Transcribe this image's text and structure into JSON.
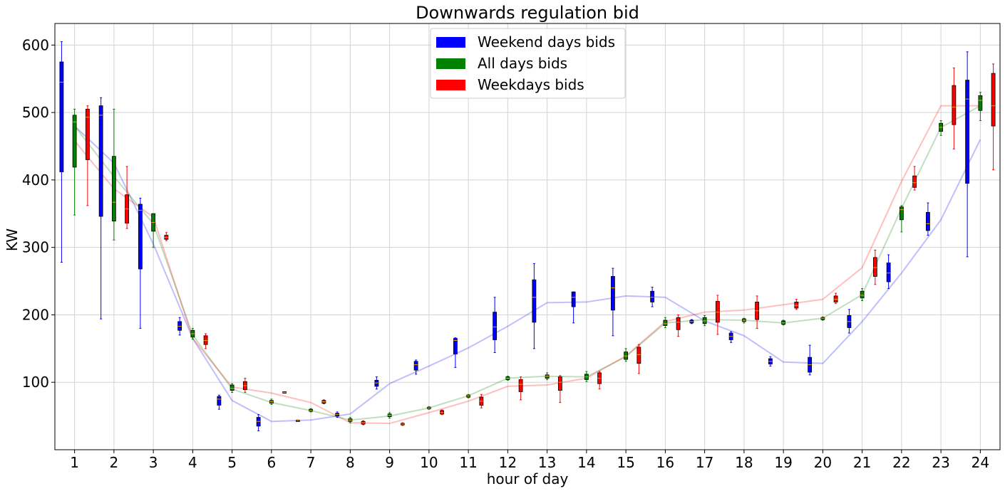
{
  "chart_data": {
    "type": "box",
    "title": "Downwards regulation bid",
    "xlabel": "hour of day",
    "ylabel": "KW",
    "x_ticks": [
      "1",
      "2",
      "3",
      "4",
      "5",
      "6",
      "7",
      "8",
      "9",
      "10",
      "11",
      "12",
      "13",
      "14",
      "15",
      "16",
      "17",
      "18",
      "19",
      "20",
      "21",
      "22",
      "23",
      "24"
    ],
    "y_ticks": [
      100,
      200,
      300,
      400,
      500,
      600
    ],
    "xlim": [
      0.5,
      24.5
    ],
    "ylim": [
      0,
      632
    ],
    "grid": true,
    "legend_position": "upper-center",
    "series": [
      {
        "name": "Weekend days bids",
        "color": "#0000ff",
        "line_values": [
          480,
          425,
          305,
          165,
          73,
          42,
          44,
          53,
          98,
          124,
          151,
          183,
          218,
          219,
          228,
          226,
          191,
          169,
          130,
          128,
          190,
          262,
          341,
          460
        ],
        "boxes": [
          {
            "whisker_low": 278,
            "q1": 412,
            "median": 545,
            "q3": 575,
            "whisker_high": 605
          },
          {
            "whisker_low": 194,
            "q1": 346,
            "median": 496,
            "q3": 510,
            "whisker_high": 522
          },
          {
            "whisker_low": 180,
            "q1": 268,
            "median": 355,
            "q3": 364,
            "whisker_high": 373
          },
          {
            "whisker_low": 170,
            "q1": 177,
            "median": 183,
            "q3": 190,
            "whisker_high": 196
          },
          {
            "whisker_low": 60,
            "q1": 66,
            "median": 75,
            "q3": 79,
            "whisker_high": 81
          },
          {
            "whisker_low": 28,
            "q1": 35,
            "median": 42,
            "q3": 48,
            "whisker_high": 52
          },
          {
            "whisker_low": 44,
            "q1": 44,
            "median": 44,
            "q3": 44,
            "whisker_high": 44
          },
          {
            "whisker_low": 48,
            "q1": 50,
            "median": 52,
            "q3": 54,
            "whisker_high": 56
          },
          {
            "whisker_low": 90,
            "q1": 94,
            "median": 99,
            "q3": 103,
            "whisker_high": 108
          },
          {
            "whisker_low": 112,
            "q1": 118,
            "median": 126,
            "q3": 131,
            "whisker_high": 133
          },
          {
            "whisker_low": 122,
            "q1": 142,
            "median": 162,
            "q3": 165,
            "whisker_high": 166
          },
          {
            "whisker_low": 144,
            "q1": 163,
            "median": 182,
            "q3": 204,
            "whisker_high": 226
          },
          {
            "whisker_low": 150,
            "q1": 189,
            "median": 226,
            "q3": 252,
            "whisker_high": 276
          },
          {
            "whisker_low": 188,
            "q1": 212,
            "median": 226,
            "q3": 234,
            "whisker_high": 234
          },
          {
            "whisker_low": 169,
            "q1": 207,
            "median": 240,
            "q3": 257,
            "whisker_high": 269
          },
          {
            "whisker_low": 212,
            "q1": 219,
            "median": 226,
            "q3": 235,
            "whisker_high": 241
          },
          {
            "whisker_low": 187,
            "q1": 188,
            "median": 190,
            "q3": 192,
            "whisker_high": 193
          },
          {
            "whisker_low": 159,
            "q1": 163,
            "median": 168,
            "q3": 173,
            "whisker_high": 175
          },
          {
            "whisker_low": 124,
            "q1": 127,
            "median": 131,
            "q3": 135,
            "whisker_high": 138
          },
          {
            "whisker_low": 111,
            "q1": 115,
            "median": 126,
            "q3": 137,
            "whisker_high": 155
          },
          {
            "whisker_low": 173,
            "q1": 181,
            "median": 190,
            "q3": 199,
            "whisker_high": 208
          },
          {
            "whisker_low": 239,
            "q1": 249,
            "median": 262,
            "q3": 277,
            "whisker_high": 289
          },
          {
            "whisker_low": 318,
            "q1": 325,
            "median": 335,
            "q3": 352,
            "whisker_high": 366
          },
          {
            "whisker_low": 286,
            "q1": 395,
            "median": 520,
            "q3": 548,
            "whisker_high": 590
          }
        ]
      },
      {
        "name": "All days bids",
        "color": "#008000",
        "line_values": [
          480,
          405,
          335,
          170,
          90,
          70,
          58,
          44,
          50,
          62,
          80,
          106,
          109,
          108,
          138,
          188,
          193,
          192,
          188,
          195,
          230,
          358,
          478,
          510
        ],
        "boxes": [
          {
            "whisker_low": 348,
            "q1": 419,
            "median": 486,
            "q3": 496,
            "whisker_high": 505
          },
          {
            "whisker_low": 311,
            "q1": 339,
            "median": 367,
            "q3": 435,
            "whisker_high": 505
          },
          {
            "whisker_low": 300,
            "q1": 324,
            "median": 337,
            "q3": 350,
            "whisker_high": 350
          },
          {
            "whisker_low": 164,
            "q1": 167,
            "median": 172,
            "q3": 177,
            "whisker_high": 180
          },
          {
            "whisker_low": 85,
            "q1": 88,
            "median": 91,
            "q3": 96,
            "whisker_high": 98
          },
          {
            "whisker_low": 67,
            "q1": 69,
            "median": 71,
            "q3": 73,
            "whisker_high": 75
          },
          {
            "whisker_low": 56,
            "q1": 57,
            "median": 58,
            "q3": 60,
            "whisker_high": 61
          },
          {
            "whisker_low": 40,
            "q1": 42,
            "median": 44,
            "q3": 46,
            "whisker_high": 48
          },
          {
            "whisker_low": 47,
            "q1": 49,
            "median": 51,
            "q3": 53,
            "whisker_high": 55
          },
          {
            "whisker_low": 60,
            "q1": 61,
            "median": 62,
            "q3": 63,
            "whisker_high": 64
          },
          {
            "whisker_low": 77,
            "q1": 78,
            "median": 80,
            "q3": 81,
            "whisker_high": 82
          },
          {
            "whisker_low": 103,
            "q1": 104,
            "median": 106,
            "q3": 108,
            "whisker_high": 109
          },
          {
            "whisker_low": 104,
            "q1": 106,
            "median": 109,
            "q3": 111,
            "whisker_high": 114
          },
          {
            "whisker_low": 101,
            "q1": 104,
            "median": 108,
            "q3": 112,
            "whisker_high": 116
          },
          {
            "whisker_low": 131,
            "q1": 134,
            "median": 139,
            "q3": 145,
            "whisker_high": 150
          },
          {
            "whisker_low": 181,
            "q1": 184,
            "median": 187,
            "q3": 192,
            "whisker_high": 196
          },
          {
            "whisker_low": 184,
            "q1": 187,
            "median": 191,
            "q3": 196,
            "whisker_high": 199
          },
          {
            "whisker_low": 188,
            "q1": 190,
            "median": 192,
            "q3": 194,
            "whisker_high": 195
          },
          {
            "whisker_low": 185,
            "q1": 186,
            "median": 188,
            "q3": 191,
            "whisker_high": 192
          },
          {
            "whisker_low": 192,
            "q1": 193,
            "median": 195,
            "q3": 196,
            "whisker_high": 197
          },
          {
            "whisker_low": 221,
            "q1": 225,
            "median": 229,
            "q3": 235,
            "whisker_high": 239
          },
          {
            "whisker_low": 323,
            "q1": 341,
            "median": 356,
            "q3": 360,
            "whisker_high": 362
          },
          {
            "whisker_low": 466,
            "q1": 472,
            "median": 478,
            "q3": 484,
            "whisker_high": 488
          },
          {
            "whisker_low": 488,
            "q1": 503,
            "median": 518,
            "q3": 525,
            "whisker_high": 530
          }
        ]
      },
      {
        "name": "Weekdays bids",
        "color": "#ff0000",
        "line_values": [
          458,
          387,
          345,
          165,
          93,
          84,
          70,
          40,
          39,
          55,
          72,
          94,
          96,
          106,
          139,
          190,
          204,
          207,
          215,
          223,
          270,
          398,
          510,
          510
        ],
        "boxes": [
          {
            "whisker_low": 362,
            "q1": 430,
            "median": 493,
            "q3": 505,
            "whisker_high": 510
          },
          {
            "whisker_low": 328,
            "q1": 336,
            "median": 357,
            "q3": 378,
            "whisker_high": 420
          },
          {
            "whisker_low": 310,
            "q1": 312,
            "median": 315,
            "q3": 318,
            "whisker_high": 322
          },
          {
            "whisker_low": 150,
            "q1": 156,
            "median": 162,
            "q3": 169,
            "whisker_high": 172
          },
          {
            "whisker_low": 85,
            "q1": 89,
            "median": 95,
            "q3": 101,
            "whisker_high": 106
          },
          {
            "whisker_low": 84,
            "q1": 84,
            "median": 85,
            "q3": 86,
            "whisker_high": 86
          },
          {
            "whisker_low": 68,
            "q1": 69,
            "median": 71,
            "q3": 73,
            "whisker_high": 74
          },
          {
            "whisker_low": 37,
            "q1": 38,
            "median": 40,
            "q3": 42,
            "whisker_high": 43
          },
          {
            "whisker_low": 36,
            "q1": 37,
            "median": 38,
            "q3": 39,
            "whisker_high": 40
          },
          {
            "whisker_low": 52,
            "q1": 53,
            "median": 55,
            "q3": 58,
            "whisker_high": 59
          },
          {
            "whisker_low": 62,
            "q1": 66,
            "median": 72,
            "q3": 78,
            "whisker_high": 82
          },
          {
            "whisker_low": 74,
            "q1": 86,
            "median": 97,
            "q3": 104,
            "whisker_high": 108
          },
          {
            "whisker_low": 70,
            "q1": 88,
            "median": 100,
            "q3": 108,
            "whisker_high": 110
          },
          {
            "whisker_low": 90,
            "q1": 98,
            "median": 106,
            "q3": 114,
            "whisker_high": 116
          },
          {
            "whisker_low": 113,
            "q1": 128,
            "median": 141,
            "q3": 152,
            "whisker_high": 156
          },
          {
            "whisker_low": 168,
            "q1": 178,
            "median": 189,
            "q3": 196,
            "whisker_high": 200
          },
          {
            "whisker_low": 171,
            "q1": 189,
            "median": 204,
            "q3": 220,
            "whisker_high": 229
          },
          {
            "whisker_low": 180,
            "q1": 193,
            "median": 206,
            "q3": 219,
            "whisker_high": 228
          },
          {
            "whisker_low": 208,
            "q1": 210,
            "median": 214,
            "q3": 219,
            "whisker_high": 223
          },
          {
            "whisker_low": 217,
            "q1": 219,
            "median": 223,
            "q3": 228,
            "whisker_high": 232
          },
          {
            "whisker_low": 245,
            "q1": 257,
            "median": 270,
            "q3": 285,
            "whisker_high": 296
          },
          {
            "whisker_low": 385,
            "q1": 389,
            "median": 396,
            "q3": 406,
            "whisker_high": 420
          },
          {
            "whisker_low": 446,
            "q1": 482,
            "median": 508,
            "q3": 540,
            "whisker_high": 566
          },
          {
            "whisker_low": 415,
            "q1": 480,
            "median": 510,
            "q3": 558,
            "whisker_high": 572
          }
        ]
      }
    ]
  }
}
